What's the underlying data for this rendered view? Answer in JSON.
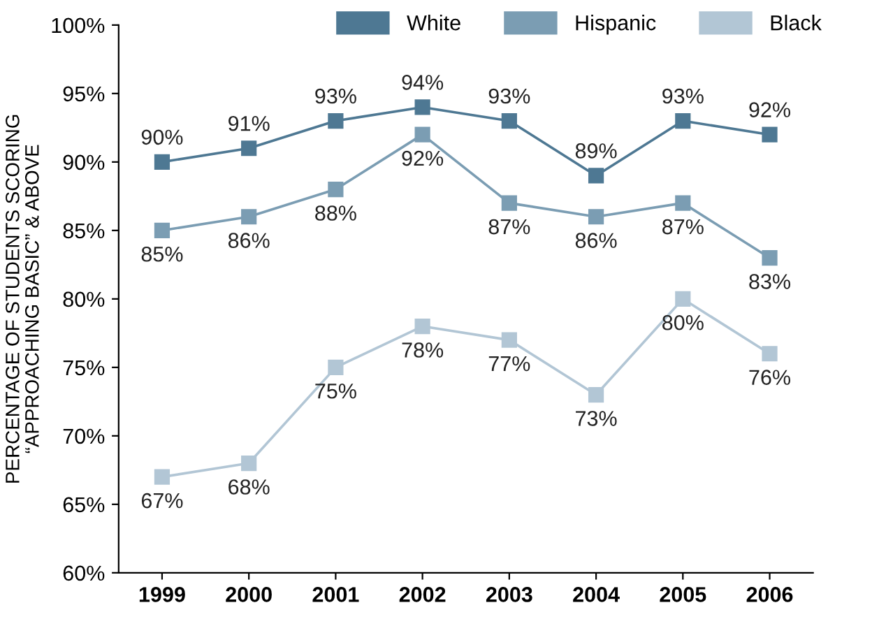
{
  "chart_data": {
    "type": "line",
    "ylabel": "PERCENTAGE OF STUDENTS SCORING\n“APPROACHING BASIC” & ABOVE",
    "categories": [
      "1999",
      "2000",
      "2001",
      "2002",
      "2003",
      "2004",
      "2005",
      "2006"
    ],
    "series": [
      {
        "name": "White",
        "color": "#4e7893",
        "values": [
          90,
          91,
          93,
          94,
          93,
          89,
          93,
          92
        ],
        "value_labels": [
          "90%",
          "91%",
          "93%",
          "94%",
          "93%",
          "89%",
          "93%",
          "92%"
        ]
      },
      {
        "name": "Hispanic",
        "color": "#7b9db3",
        "values": [
          85,
          86,
          88,
          92,
          87,
          86,
          87,
          83
        ],
        "value_labels": [
          "85%",
          "86%",
          "88%",
          "92%",
          "87%",
          "86%",
          "87%",
          "83%"
        ]
      },
      {
        "name": "Black",
        "color": "#b2c6d5",
        "values": [
          67,
          68,
          75,
          78,
          77,
          73,
          80,
          76
        ],
        "value_labels": [
          "67%",
          "68%",
          "75%",
          "78%",
          "77%",
          "73%",
          "80%",
          "76%"
        ]
      }
    ],
    "ylim": [
      60,
      100
    ],
    "yticks": [
      {
        "value": 60,
        "label": "60%"
      },
      {
        "value": 65,
        "label": "65%"
      },
      {
        "value": 70,
        "label": "70%"
      },
      {
        "value": 75,
        "label": "75%"
      },
      {
        "value": 80,
        "label": "80%"
      },
      {
        "value": 85,
        "label": "85%"
      },
      {
        "value": 90,
        "label": "90%"
      },
      {
        "value": 95,
        "label": "95%"
      },
      {
        "value": 100,
        "label": "100%"
      }
    ],
    "legend": "top right",
    "marker": "square",
    "line_style": "solid",
    "grid": false
  }
}
